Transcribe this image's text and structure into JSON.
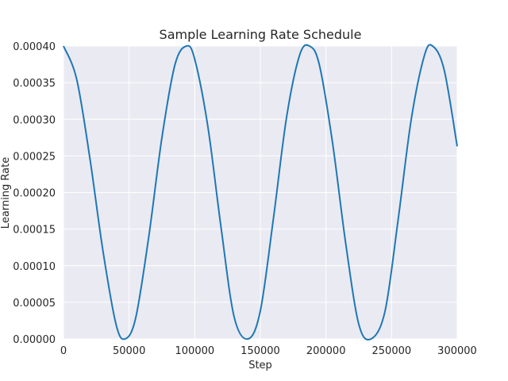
{
  "chart_data": {
    "type": "line",
    "title": "Sample Learning Rate Schedule",
    "xlabel": "Step",
    "ylabel": "Learning Rate",
    "xlim": [
      0,
      300000
    ],
    "ylim": [
      0,
      0.0004
    ],
    "grid": true,
    "background": "#eaeaf2",
    "x_ticks": [
      0,
      50000,
      100000,
      150000,
      200000,
      250000,
      300000
    ],
    "x_tick_labels": [
      "0",
      "50000",
      "100000",
      "150000",
      "200000",
      "250000",
      "300000"
    ],
    "y_ticks": [
      0,
      5e-05,
      0.0001,
      0.00015,
      0.0002,
      0.00025,
      0.0003,
      0.00035,
      0.0004
    ],
    "y_tick_labels": [
      "0.00000",
      "0.00005",
      "0.00010",
      "0.00015",
      "0.00020",
      "0.00025",
      "0.00030",
      "0.00035",
      "0.00040"
    ],
    "series": [
      {
        "color": "#1f77b4",
        "x": [
          0,
          10000,
          20000,
          30000,
          40000,
          46875,
          55000,
          65000,
          75000,
          85000,
          93750,
          100000,
          110000,
          120000,
          130000,
          140625,
          150000,
          160000,
          170000,
          180000,
          187500,
          195000,
          205000,
          215000,
          225000,
          234375,
          245000,
          255000,
          265000,
          275000,
          281250,
          290000,
          300000
        ],
        "y": [
          0.0004,
          0.000355,
          0.000248,
          0.000121,
          2.02e-05,
          0,
          2.86e-05,
          0.00014,
          0.000275,
          0.000375,
          0.0004,
          0.000382,
          0.00029,
          0.000153,
          3.03e-05,
          0,
          3.85e-05,
          0.000165,
          0.000303,
          0.000388,
          0.0004,
          0.000374,
          0.000268,
          0.000131,
          2.02e-05,
          0,
          3.79e-05,
          0.000163,
          0.0003,
          0.000387,
          0.0004,
          0.000368,
          0.000263
        ]
      }
    ]
  }
}
